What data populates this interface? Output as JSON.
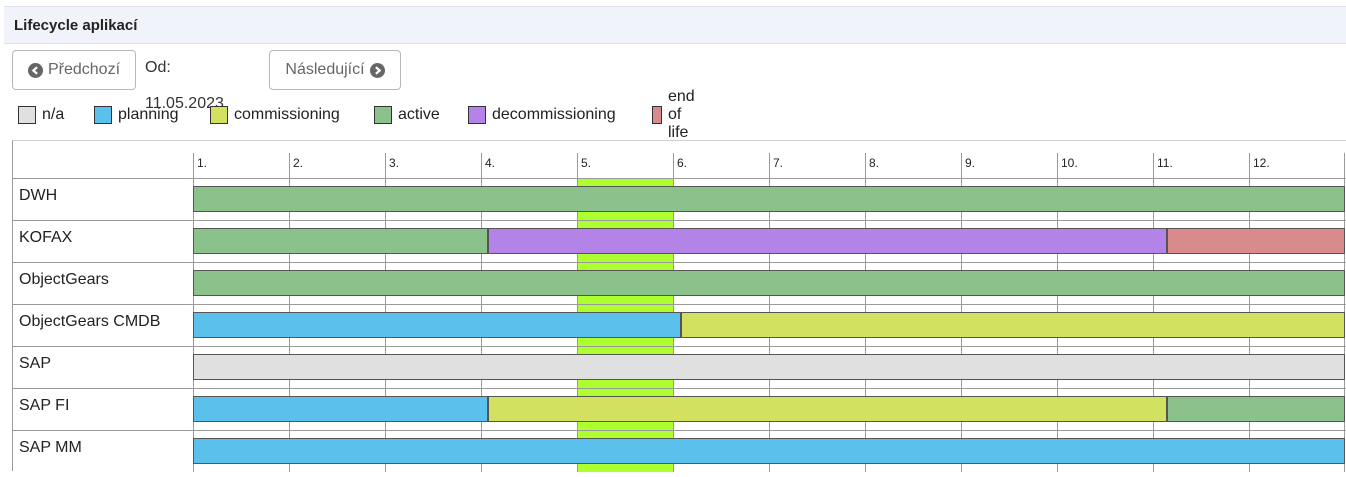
{
  "panel": {
    "title": "Lifecycle aplikací"
  },
  "toolbar": {
    "prev_label": "Předchozí",
    "from_text": "Od: 11.05.2023",
    "next_label": "Následující"
  },
  "legend": [
    {
      "key": "na",
      "label": "n/a",
      "color": "#e0e0e0"
    },
    {
      "key": "planning",
      "label": "planning",
      "color": "#5bc0eb"
    },
    {
      "key": "commissioning",
      "label": "commissioning",
      "color": "#d2e15f"
    },
    {
      "key": "active",
      "label": "active",
      "color": "#8bc28b"
    },
    {
      "key": "decommissioning",
      "label": "decommissioning",
      "color": "#b383e8"
    },
    {
      "key": "end_of_life",
      "label": "end of life",
      "color": "#d98a8a"
    }
  ],
  "timeline": {
    "months": [
      "1.",
      "2.",
      "3.",
      "4.",
      "5.",
      "6.",
      "7.",
      "8.",
      "9.",
      "10.",
      "11.",
      "12."
    ],
    "current_month": 5
  },
  "applications": [
    {
      "name": "DWH",
      "segments": [
        {
          "status": "active",
          "start": 1,
          "end": 13
        }
      ]
    },
    {
      "name": "KOFAX",
      "segments": [
        {
          "status": "active",
          "start": 1,
          "end": 4.07
        },
        {
          "status": "decommissioning",
          "start": 4.07,
          "end": 11.15
        },
        {
          "status": "end_of_life",
          "start": 11.15,
          "end": 13
        }
      ]
    },
    {
      "name": "ObjectGears",
      "segments": [
        {
          "status": "active",
          "start": 1,
          "end": 13
        }
      ]
    },
    {
      "name": "ObjectGears CMDB",
      "segments": [
        {
          "status": "planning",
          "start": 1,
          "end": 6.08
        },
        {
          "status": "commissioning",
          "start": 6.08,
          "end": 13
        }
      ]
    },
    {
      "name": "SAP",
      "segments": [
        {
          "status": "na",
          "start": 1,
          "end": 13
        }
      ]
    },
    {
      "name": "SAP FI",
      "segments": [
        {
          "status": "planning",
          "start": 1,
          "end": 4.07
        },
        {
          "status": "commissioning",
          "start": 4.07,
          "end": 11.15
        },
        {
          "status": "active",
          "start": 11.15,
          "end": 13
        }
      ]
    },
    {
      "name": "SAP MM",
      "segments": [
        {
          "status": "planning",
          "start": 1,
          "end": 13
        }
      ]
    }
  ]
}
